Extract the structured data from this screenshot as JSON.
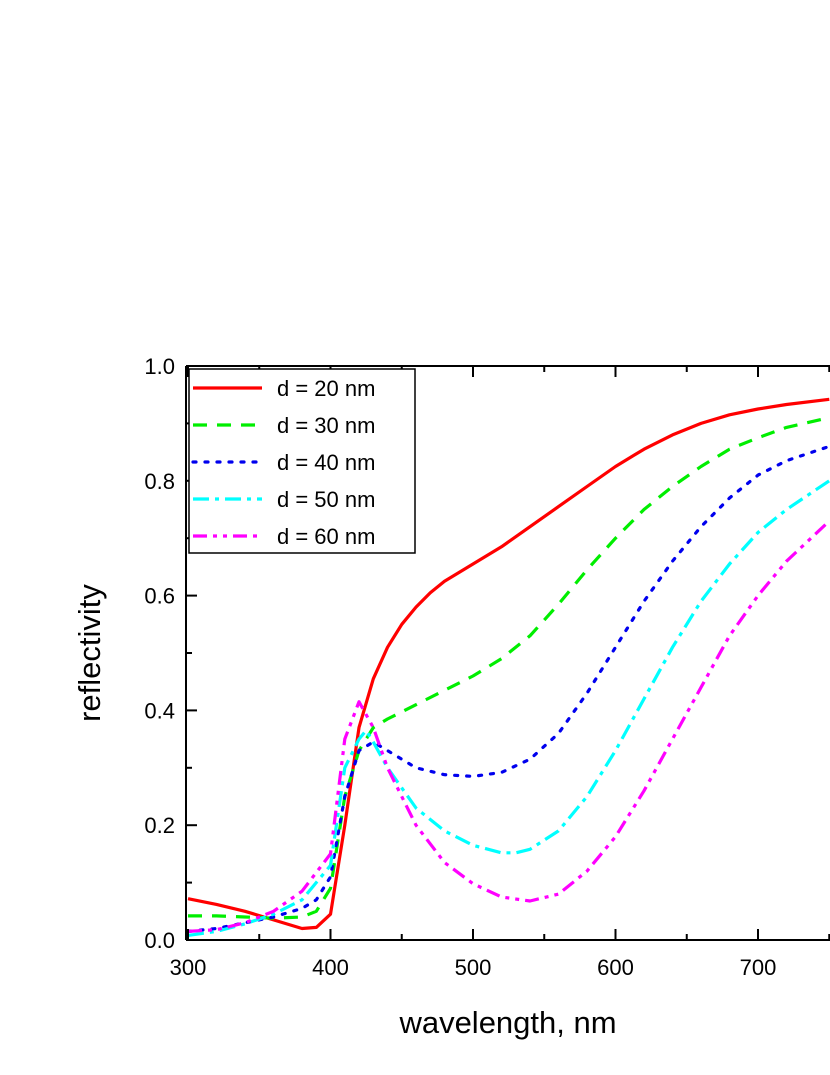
{
  "chart_data": {
    "type": "line",
    "title": "",
    "xlabel": "wavelength, nm",
    "ylabel": "reflectivity",
    "xlim": [
      300,
      750
    ],
    "ylim": [
      0.0,
      1.0
    ],
    "xticks": [
      "300",
      "400",
      "500",
      "600",
      "700"
    ],
    "yticks": [
      "0.0",
      "0.2",
      "0.4",
      "0.6",
      "0.8",
      "1.0"
    ],
    "grid": false,
    "legend_position": "top-left",
    "series": [
      {
        "name": "d = 20 nm",
        "color": "#ff0000",
        "style": "solid",
        "x": [
          300,
          320,
          340,
          360,
          380,
          390,
          400,
          410,
          420,
          430,
          440,
          450,
          460,
          470,
          480,
          500,
          520,
          540,
          560,
          580,
          600,
          620,
          640,
          660,
          680,
          700,
          720,
          750
        ],
        "y": [
          0.072,
          0.062,
          0.05,
          0.035,
          0.02,
          0.022,
          0.045,
          0.2,
          0.37,
          0.455,
          0.51,
          0.55,
          0.58,
          0.605,
          0.625,
          0.655,
          0.685,
          0.72,
          0.755,
          0.79,
          0.825,
          0.855,
          0.88,
          0.9,
          0.915,
          0.925,
          0.933,
          0.942
        ]
      },
      {
        "name": "d = 30 nm",
        "color": "#00ee00",
        "style": "dash",
        "x": [
          300,
          320,
          340,
          360,
          380,
          390,
          400,
          410,
          420,
          430,
          440,
          460,
          480,
          500,
          520,
          540,
          560,
          580,
          600,
          620,
          640,
          660,
          680,
          700,
          720,
          750
        ],
        "y": [
          0.042,
          0.042,
          0.04,
          0.038,
          0.04,
          0.05,
          0.09,
          0.25,
          0.33,
          0.37,
          0.385,
          0.41,
          0.435,
          0.46,
          0.49,
          0.53,
          0.585,
          0.645,
          0.7,
          0.75,
          0.79,
          0.825,
          0.855,
          0.875,
          0.893,
          0.91
        ]
      },
      {
        "name": "d = 40 nm",
        "color": "#0000ee",
        "style": "dot",
        "x": [
          300,
          320,
          340,
          360,
          380,
          390,
          400,
          410,
          420,
          430,
          440,
          460,
          480,
          500,
          520,
          540,
          560,
          580,
          600,
          620,
          640,
          660,
          680,
          700,
          720,
          750
        ],
        "y": [
          0.015,
          0.02,
          0.03,
          0.04,
          0.055,
          0.07,
          0.11,
          0.25,
          0.33,
          0.345,
          0.33,
          0.3,
          0.288,
          0.285,
          0.292,
          0.315,
          0.36,
          0.43,
          0.51,
          0.59,
          0.66,
          0.72,
          0.77,
          0.81,
          0.835,
          0.86
        ]
      },
      {
        "name": "d = 50 nm",
        "color": "#00ffff",
        "style": "dashdot",
        "x": [
          300,
          320,
          340,
          360,
          380,
          400,
          410,
          420,
          425,
          430,
          440,
          460,
          480,
          500,
          520,
          530,
          540,
          560,
          580,
          600,
          620,
          640,
          660,
          680,
          700,
          720,
          750
        ],
        "y": [
          0.008,
          0.015,
          0.028,
          0.045,
          0.07,
          0.13,
          0.3,
          0.35,
          0.365,
          0.345,
          0.3,
          0.23,
          0.19,
          0.165,
          0.152,
          0.152,
          0.158,
          0.19,
          0.25,
          0.33,
          0.42,
          0.51,
          0.59,
          0.655,
          0.71,
          0.75,
          0.8
        ]
      },
      {
        "name": "d = 60 nm",
        "color": "#ff00ff",
        "style": "dashdotdot",
        "x": [
          300,
          320,
          340,
          360,
          380,
          400,
          410,
          420,
          430,
          440,
          460,
          480,
          500,
          520,
          540,
          560,
          580,
          600,
          620,
          640,
          660,
          680,
          700,
          720,
          750
        ],
        "y": [
          0.015,
          0.018,
          0.03,
          0.05,
          0.085,
          0.15,
          0.35,
          0.415,
          0.37,
          0.3,
          0.2,
          0.135,
          0.098,
          0.075,
          0.068,
          0.08,
          0.12,
          0.18,
          0.26,
          0.35,
          0.44,
          0.53,
          0.6,
          0.66,
          0.73
        ]
      }
    ]
  }
}
